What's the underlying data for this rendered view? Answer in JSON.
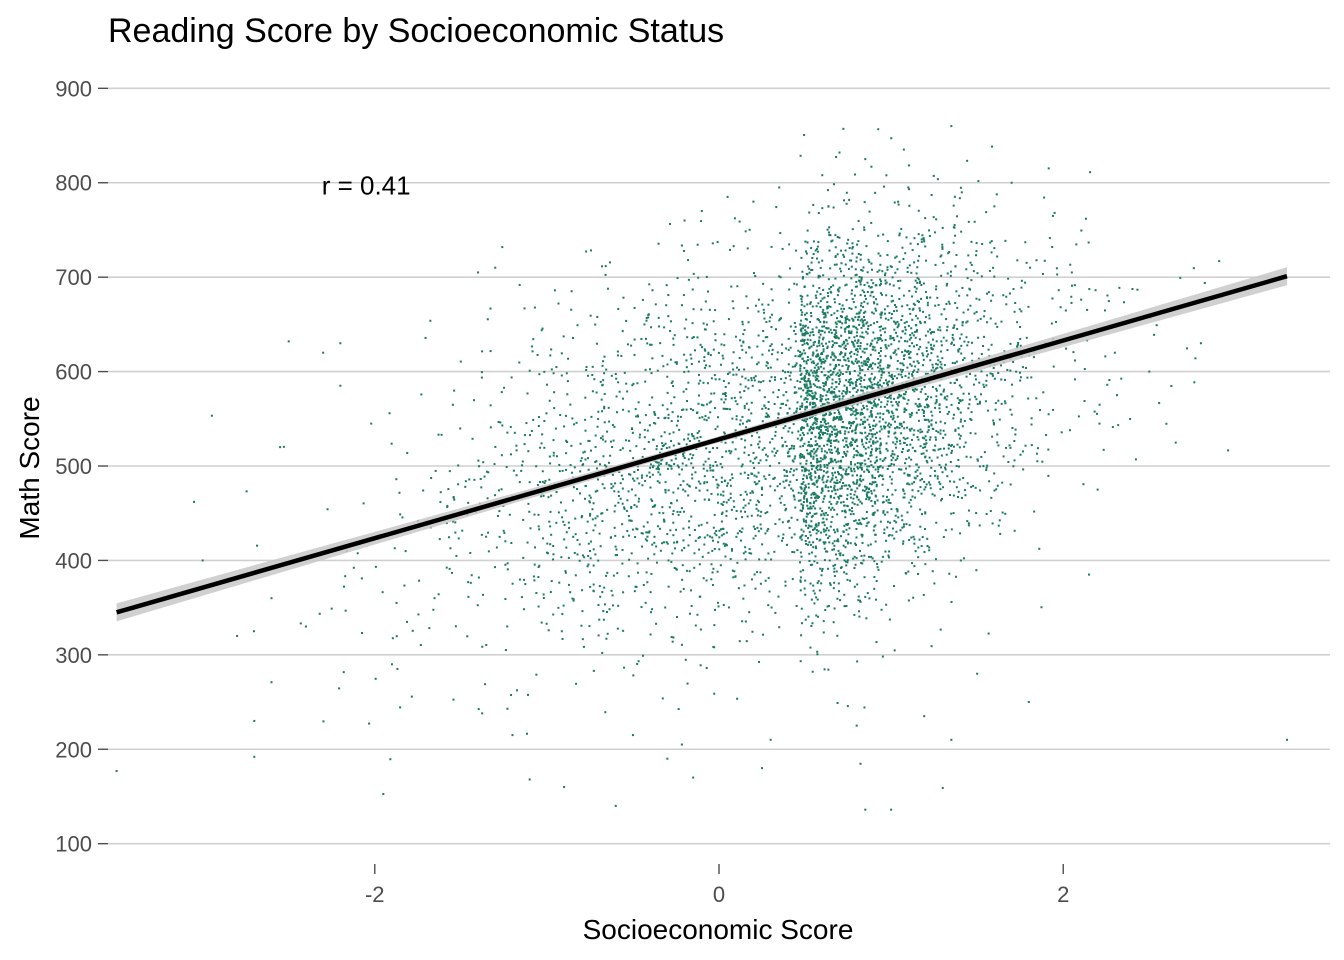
{
  "chart_data": {
    "type": "scatter",
    "title": "Reading Score by Socioeconomic Status",
    "xlabel": "Socioeconomic Score",
    "ylabel": "Math Score",
    "xlim": [
      -3.55,
      3.55
    ],
    "ylim": [
      70,
      930
    ],
    "x_ticks": [
      -2,
      0,
      2
    ],
    "y_ticks": [
      100,
      200,
      300,
      400,
      500,
      600,
      700,
      800,
      900
    ],
    "grid": "horizontal major lines",
    "legend": "none",
    "annotation": {
      "text": "r = 0.41",
      "x": -2.05,
      "y": 797
    },
    "point_color": "#1a7a63",
    "trend": {
      "type": "linear fit with confidence band",
      "x": [
        -3.5,
        3.3
      ],
      "y": [
        345,
        701
      ],
      "color": "#000000",
      "band_color": "#c8c8c8"
    },
    "points_summary": {
      "count": 5000,
      "approx_x_mean": 0.2,
      "approx_x_sd": 0.9,
      "approx_y_mean": 530,
      "approx_y_sd": 105,
      "correlation": 0.41,
      "x_min": -3.5,
      "x_max": 3.3,
      "y_min": 135,
      "y_max": 860
    },
    "points": [
      [
        -3.5,
        177
      ],
      [
        -2.8,
        320
      ],
      [
        -2.7,
        230
      ],
      [
        -2.7,
        192
      ],
      [
        -2.6,
        271
      ],
      [
        -3.05,
        462
      ],
      [
        -2.55,
        520
      ],
      [
        -2.5,
        632
      ],
      [
        -2.3,
        620
      ],
      [
        -2.2,
        630
      ],
      [
        -2.2,
        585
      ],
      [
        -1.9,
        290
      ],
      [
        -1.4,
        705
      ],
      [
        -1.3,
        710
      ],
      [
        -1.1,
        168
      ],
      [
        -0.9,
        160
      ],
      [
        -0.6,
        140
      ],
      [
        -0.3,
        190
      ],
      [
        -0.15,
        170
      ],
      [
        0.6,
        808
      ],
      [
        0.7,
        832
      ],
      [
        0.85,
        825
      ],
      [
        1.35,
        860
      ],
      [
        1.0,
        136
      ],
      [
        0.85,
        136
      ],
      [
        1.3,
        159
      ],
      [
        1.35,
        210
      ],
      [
        1.8,
        250
      ],
      [
        2.15,
        385
      ],
      [
        2.8,
        630
      ],
      [
        3.3,
        210
      ],
      [
        2.5,
        600
      ],
      [
        2.3,
        620
      ],
      [
        2.05,
        705
      ],
      [
        1.95,
        768
      ],
      [
        1.7,
        800
      ],
      [
        1.6,
        775
      ],
      [
        2.2,
        475
      ],
      [
        1.85,
        505
      ],
      [
        -3.0,
        400
      ],
      [
        -2.6,
        360
      ],
      [
        -2.4,
        330
      ],
      [
        -0.1,
        770
      ],
      [
        0.05,
        785
      ],
      [
        0.2,
        780
      ],
      [
        -0.2,
        760
      ],
      [
        0.35,
        795
      ],
      [
        1.1,
        795
      ],
      [
        0.3,
        210
      ],
      [
        0.8,
        225
      ],
      [
        0.25,
        180
      ],
      [
        1.5,
        280
      ],
      [
        -1.2,
        215
      ],
      [
        -0.5,
        215
      ]
    ]
  }
}
